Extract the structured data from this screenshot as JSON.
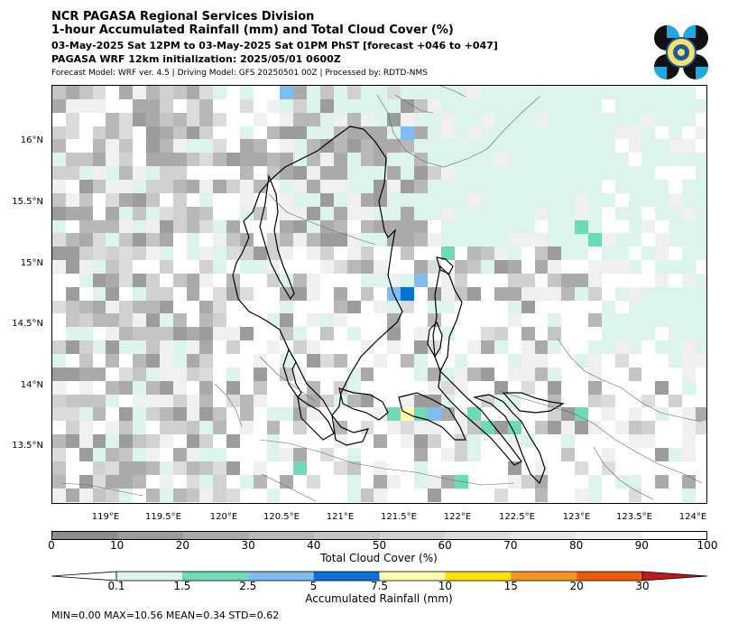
{
  "header": {
    "line1": "NCR PAGASA Regional Services Division",
    "line2": "1-hour Accumulated Rainfall (mm) and Total Cloud Cover (%)",
    "line3": "03-May-2025 Sat 12PM to 03-May-2025 Sat 01PM PhST [forecast +046 to +047]",
    "line4": "PAGASA WRF 12km initialization: 2025/05/01 0600Z",
    "line5": "Forecast Model: WRF ver. 4.5 | Driving Model: GFS 20250501 00Z | Processed by: RDTD-NMS"
  },
  "map": {
    "lat_labels": [
      "16°N",
      "15.5°N",
      "15°N",
      "14.5°N",
      "14°N",
      "13.5°N"
    ],
    "lon_labels": [
      "119°E",
      "119.5°E",
      "120°E",
      "120.5°E",
      "121°E",
      "121.5°E",
      "122°E",
      "122.5°E",
      "123°E",
      "123.5°E",
      "124°E"
    ],
    "lat_range": [
      13.0,
      16.45
    ],
    "lon_range": [
      118.55,
      124.1
    ]
  },
  "cloud_cover_bar": {
    "title": "Total Cloud Cover (%)",
    "ticks": [
      "0",
      "10",
      "20",
      "30",
      "40",
      "50",
      "60",
      "70",
      "80",
      "90",
      "100"
    ],
    "colors": [
      "#8c8c8c",
      "#9c9c9c",
      "#aaaaaa",
      "#b8b8b8",
      "#c5c5c5",
      "#d1d1d1",
      "#dcdcdc",
      "#e6e6e6",
      "#f0f0f0",
      "#ffffff"
    ]
  },
  "rain_bar": {
    "title": "Accumulated Rainfall (mm)",
    "ticks": [
      "0.1",
      "1.5",
      "2.5",
      "5",
      "7.5",
      "10",
      "15",
      "20",
      "30"
    ],
    "colors": [
      "#ffffff",
      "#dcf4ec",
      "#6ddbb6",
      "#7ebcf2",
      "#0a72d6",
      "#ffffb0",
      "#fbe400",
      "#f5951c",
      "#ee5a0a",
      "#c01818"
    ]
  },
  "stats": "MIN=0.00   MAX=10.56   MEAN=0.34   STD=0.62"
}
